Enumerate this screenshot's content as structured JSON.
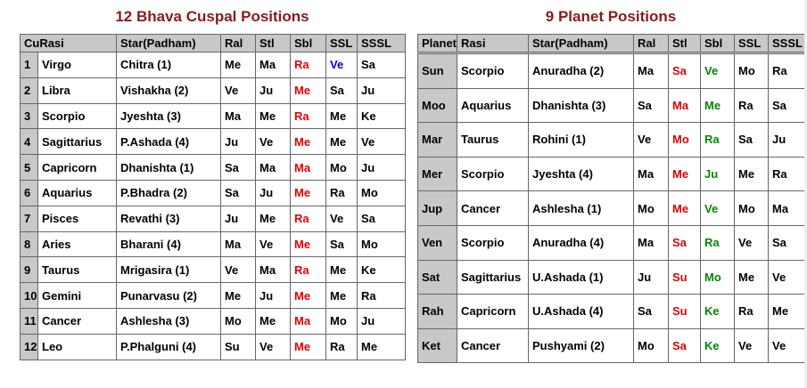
{
  "colors": {
    "title": "#8b1a1a",
    "header_bg": "#c8c8c8",
    "red": "#e00000",
    "blue": "#0000e0",
    "green": "#008800",
    "black": "#000000"
  },
  "cusp": {
    "title": "12 Bhava Cuspal Positions",
    "headers": [
      "CuRasi",
      "Star(Padham)",
      "Ral",
      "Stl",
      "Sbl",
      "SSL",
      "SSSL"
    ],
    "rows": [
      {
        "no": "1",
        "rasi": "Virgo",
        "star": "Chitra (1)",
        "ral": "Me",
        "stl": "Ma",
        "sbl": "Ra",
        "ssl": "Ve",
        "sssl": "Sa",
        "sbl_color": "red",
        "ssl_color": "blue"
      },
      {
        "no": "2",
        "rasi": "Libra",
        "star": "Vishakha (2)",
        "ral": "Ve",
        "stl": "Ju",
        "sbl": "Me",
        "ssl": "Sa",
        "sssl": "Ju",
        "sbl_color": "red",
        "ssl_color": "black"
      },
      {
        "no": "3",
        "rasi": "Scorpio",
        "star": "Jyeshta (3)",
        "ral": "Ma",
        "stl": "Me",
        "sbl": "Ra",
        "ssl": "Me",
        "sssl": "Ke",
        "sbl_color": "red",
        "ssl_color": "black"
      },
      {
        "no": "4",
        "rasi": "Sagittarius",
        "star": "P.Ashada (4)",
        "ral": "Ju",
        "stl": "Ve",
        "sbl": "Me",
        "ssl": "Me",
        "sssl": "Ve",
        "sbl_color": "red",
        "ssl_color": "black"
      },
      {
        "no": "5",
        "rasi": "Capricorn",
        "star": "Dhanishta (1)",
        "ral": "Sa",
        "stl": "Ma",
        "sbl": "Ma",
        "ssl": "Mo",
        "sssl": "Ju",
        "sbl_color": "red",
        "ssl_color": "black"
      },
      {
        "no": "6",
        "rasi": "Aquarius",
        "star": "P.Bhadra (2)",
        "ral": "Sa",
        "stl": "Ju",
        "sbl": "Me",
        "ssl": "Ra",
        "sssl": "Mo",
        "sbl_color": "red",
        "ssl_color": "black"
      },
      {
        "no": "7",
        "rasi": "Pisces",
        "star": "Revathi (3)",
        "ral": "Ju",
        "stl": "Me",
        "sbl": "Ra",
        "ssl": "Ve",
        "sssl": "Sa",
        "sbl_color": "red",
        "ssl_color": "black"
      },
      {
        "no": "8",
        "rasi": "Aries",
        "star": "Bharani (4)",
        "ral": "Ma",
        "stl": "Ve",
        "sbl": "Me",
        "ssl": "Sa",
        "sssl": "Mo",
        "sbl_color": "red",
        "ssl_color": "black"
      },
      {
        "no": "9",
        "rasi": "Taurus",
        "star": "Mrigasira (1)",
        "ral": "Ve",
        "stl": "Ma",
        "sbl": "Ra",
        "ssl": "Me",
        "sssl": "Ke",
        "sbl_color": "red",
        "ssl_color": "black"
      },
      {
        "no": "10",
        "rasi": "Gemini",
        "star": "Punarvasu (2)",
        "ral": "Me",
        "stl": "Ju",
        "sbl": "Me",
        "ssl": "Me",
        "sssl": "Ra",
        "sbl_color": "red",
        "ssl_color": "black"
      },
      {
        "no": "11",
        "rasi": "Cancer",
        "star": "Ashlesha (3)",
        "ral": "Mo",
        "stl": "Me",
        "sbl": "Ma",
        "ssl": "Mo",
        "sssl": "Ju",
        "sbl_color": "red",
        "ssl_color": "black"
      },
      {
        "no": "12",
        "rasi": "Leo",
        "star": "P.Phalguni (4)",
        "ral": "Su",
        "stl": "Ve",
        "sbl": "Me",
        "ssl": "Ra",
        "sssl": "Me",
        "sbl_color": "red",
        "ssl_color": "black"
      }
    ]
  },
  "planets": {
    "title": "9 Planet Positions",
    "headers": [
      "Planet",
      "Rasi",
      "Star(Padham)",
      "Ral",
      "Stl",
      "Sbl",
      "SSL",
      "SSSL"
    ],
    "rows": [
      {
        "planet": "Sun",
        "rasi": "Scorpio",
        "star": "Anuradha (2)",
        "ral": "Ma",
        "stl": "Sa",
        "sbl": "Ve",
        "ssl": "Mo",
        "sssl": "Ra"
      },
      {
        "planet": "Moo",
        "rasi": "Aquarius",
        "star": "Dhanishta (3)",
        "ral": "Sa",
        "stl": "Ma",
        "sbl": "Me",
        "ssl": "Ra",
        "sssl": "Sa"
      },
      {
        "planet": "Mar",
        "rasi": "Taurus",
        "star": "Rohini (1)",
        "ral": "Ve",
        "stl": "Mo",
        "sbl": "Ra",
        "ssl": "Sa",
        "sssl": "Ju"
      },
      {
        "planet": "Mer",
        "rasi": "Scorpio",
        "star": "Jyeshta (4)",
        "ral": "Ma",
        "stl": "Me",
        "sbl": "Ju",
        "ssl": "Me",
        "sssl": "Ra"
      },
      {
        "planet": "Jup",
        "rasi": "Cancer",
        "star": "Ashlesha (1)",
        "ral": "Mo",
        "stl": "Me",
        "sbl": "Ve",
        "ssl": "Mo",
        "sssl": "Ma"
      },
      {
        "planet": "Ven",
        "rasi": "Scorpio",
        "star": "Anuradha (4)",
        "ral": "Ma",
        "stl": "Sa",
        "sbl": "Ra",
        "ssl": "Ve",
        "sssl": "Sa"
      },
      {
        "planet": "Sat",
        "rasi": "Sagittarius",
        "star": "U.Ashada (1)",
        "ral": "Ju",
        "stl": "Su",
        "sbl": "Mo",
        "ssl": "Me",
        "sssl": "Ve"
      },
      {
        "planet": "Rah",
        "rasi": "Capricorn",
        "star": "U.Ashada (4)",
        "ral": "Sa",
        "stl": "Su",
        "sbl": "Ke",
        "ssl": "Ra",
        "sssl": "Me"
      },
      {
        "planet": "Ket",
        "rasi": "Cancer",
        "star": "Pushyami (2)",
        "ral": "Mo",
        "stl": "Sa",
        "sbl": "Ke",
        "ssl": "Ve",
        "sssl": "Ve"
      }
    ]
  }
}
